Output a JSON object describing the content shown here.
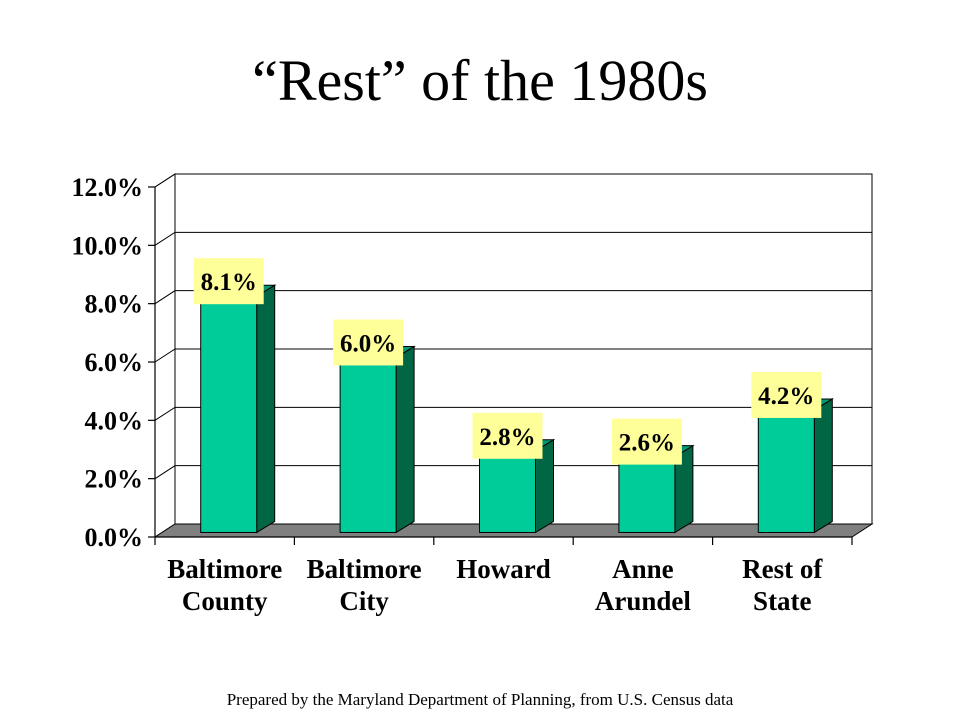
{
  "slide": {
    "title": "“Rest” of the 1980s",
    "footer": "Prepared by the Maryland Department of Planning, from U.S. Census data"
  },
  "chart_data": {
    "type": "bar",
    "categories": [
      [
        "Baltimore",
        "County"
      ],
      [
        "Baltimore",
        "City"
      ],
      [
        "Howard"
      ],
      [
        "Anne",
        "Arundel"
      ],
      [
        "Rest of",
        "State"
      ]
    ],
    "values": [
      8.1,
      6.0,
      2.8,
      2.6,
      4.2
    ],
    "data_labels": [
      "8.1%",
      "6.0%",
      "2.8%",
      "2.6%",
      "4.2%"
    ],
    "ylim": [
      0,
      12
    ],
    "yticks": [
      0,
      2,
      4,
      6,
      8,
      10,
      12
    ],
    "ytick_labels": [
      "0.0%",
      "2.0%",
      "4.0%",
      "6.0%",
      "8.0%",
      "10.0%",
      "12.0%"
    ],
    "grid": true,
    "three_d": true,
    "colors": {
      "bar_front": "#00CC99",
      "bar_side": "#006644",
      "bar_top": "#009977",
      "label_bg": "#FFFF99",
      "floor": "#808080",
      "grid": "#000000"
    }
  }
}
